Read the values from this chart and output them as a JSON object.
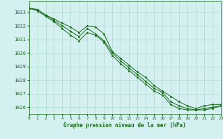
{
  "title": "Graphe pression niveau de la mer (hPa)",
  "background_color": "#d4f0f0",
  "grid_color": "#aaddcc",
  "line_color": "#1a6b1a",
  "marker_color": "#1a6b1a",
  "xmin": 0,
  "xmax": 23,
  "ymin": 1025.5,
  "ymax": 1033.8,
  "yticks": [
    1026,
    1027,
    1028,
    1029,
    1030,
    1031,
    1032,
    1033
  ],
  "xticks": [
    0,
    1,
    2,
    3,
    4,
    5,
    6,
    7,
    8,
    9,
    10,
    11,
    12,
    13,
    14,
    15,
    16,
    17,
    18,
    19,
    20,
    21,
    22,
    23
  ],
  "series": [
    [
      1033.3,
      1033.2,
      1032.8,
      1032.5,
      1032.2,
      1031.9,
      1031.5,
      1032.0,
      1031.9,
      1031.4,
      1030.1,
      1029.6,
      1029.1,
      1028.6,
      1028.2,
      1027.6,
      1027.2,
      1026.8,
      1026.4,
      1026.1,
      1025.9,
      1026.1,
      1026.2,
      1026.2
    ],
    [
      1033.3,
      1033.2,
      1032.8,
      1032.4,
      1032.0,
      1031.6,
      1031.2,
      1031.8,
      1031.4,
      1030.9,
      1030.0,
      1029.4,
      1028.9,
      1028.4,
      1027.9,
      1027.4,
      1027.1,
      1026.4,
      1026.1,
      1025.9,
      1025.8,
      1025.9,
      1026.0,
      1026.1
    ],
    [
      1033.3,
      1033.1,
      1032.7,
      1032.3,
      1031.8,
      1031.3,
      1030.9,
      1031.5,
      1031.3,
      1030.8,
      1029.8,
      1029.2,
      1028.7,
      1028.2,
      1027.7,
      1027.2,
      1026.9,
      1026.2,
      1025.9,
      1025.8,
      1025.8,
      1025.8,
      1025.9,
      1026.1
    ]
  ]
}
